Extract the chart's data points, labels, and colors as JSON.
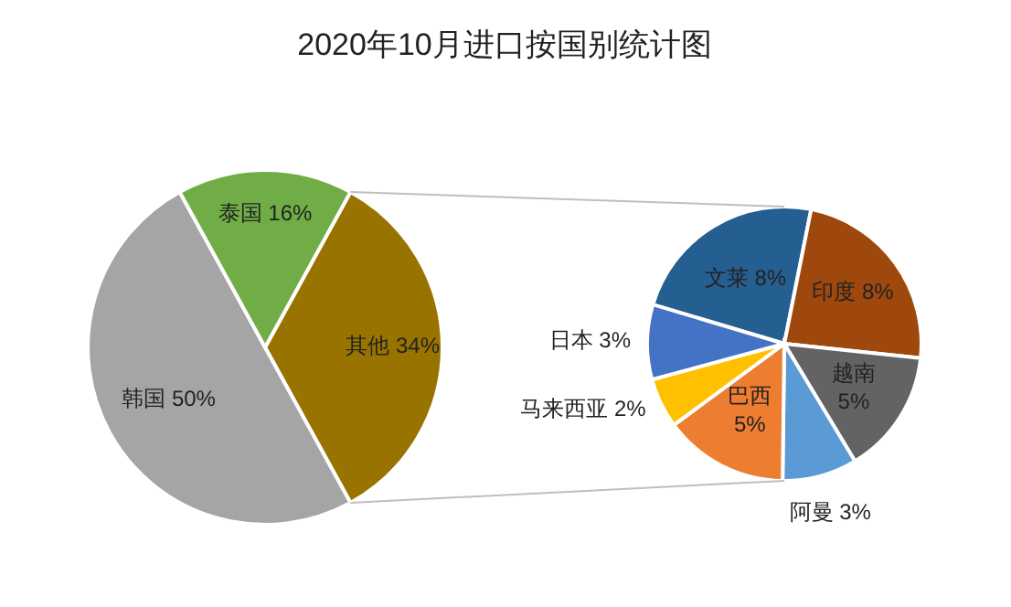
{
  "chart_data": [
    {
      "type": "pie",
      "title": "2020年10月进口按国别统计图",
      "categories": [
        "其他",
        "韩国",
        "泰国"
      ],
      "values": [
        34,
        50,
        16
      ],
      "value_labels": [
        "34%",
        "50%",
        "16%"
      ],
      "colors": [
        "#997300",
        "#a5a5a5",
        "#70ad47"
      ]
    },
    {
      "type": "pie",
      "categories": [
        "文莱",
        "印度",
        "越南",
        "阿曼",
        "巴西",
        "马来西亚",
        "日本"
      ],
      "values": [
        8,
        8,
        5,
        3,
        5,
        2,
        3
      ],
      "value_labels": [
        "8%",
        "8%",
        "5%",
        "3%",
        "5%",
        "2%",
        "3%"
      ],
      "colors": [
        "#255e91",
        "#9e480e",
        "#636363",
        "#5b9bd5",
        "#ed7d31",
        "#ffc000",
        "#4472c4"
      ]
    }
  ]
}
